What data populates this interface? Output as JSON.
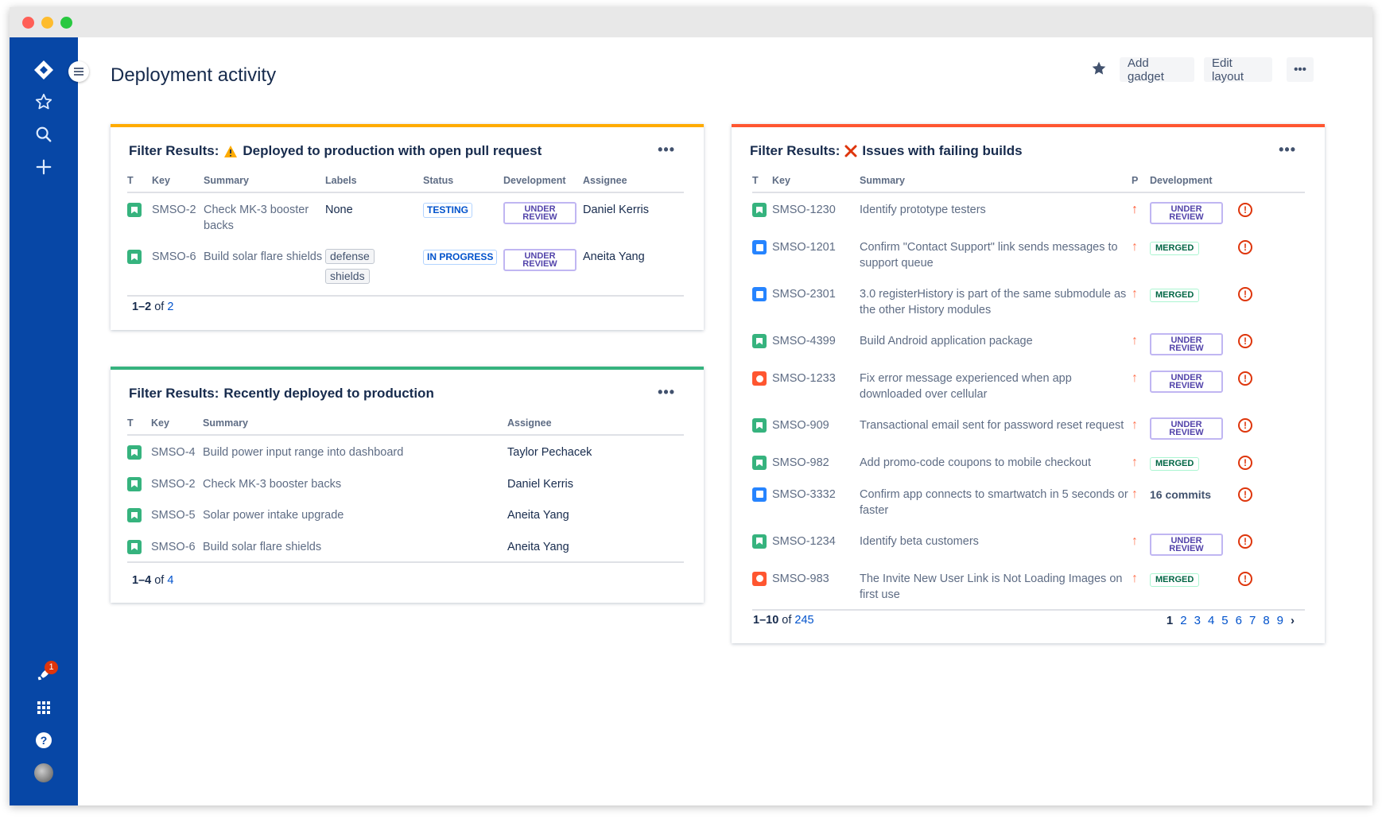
{
  "window": {
    "colors": {
      "close": "#ff5f57",
      "minimize": "#febc2e",
      "zoom": "#28c840"
    }
  },
  "sidebar": {
    "color": "#0747a6",
    "items": [
      "jira-logo",
      "star",
      "search",
      "create",
      "releases",
      "apps",
      "help",
      "profile"
    ],
    "notification_count": "1"
  },
  "header": {
    "title": "Deployment activity",
    "add_gadget": "Add gadget",
    "edit_layout": "Edit layout",
    "more": "•••"
  },
  "gadget1": {
    "accent": "#ffab00",
    "prefix": "Filter Results:",
    "title": "Deployed to production with open pull request",
    "icon": "warning",
    "columns": [
      "T",
      "Key",
      "Summary",
      "Labels",
      "Status",
      "Development",
      "Assignee"
    ],
    "rows": [
      {
        "type": "story",
        "key": "SMSO-2",
        "summary": "Check MK-3 booster backs",
        "labels": [
          "None"
        ],
        "status": "TESTING",
        "dev": "UNDER REVIEW",
        "assignee": "Daniel Kerris"
      },
      {
        "type": "story",
        "key": "SMSO-6",
        "summary": "Build solar flare shields",
        "labels": [
          "defense",
          "shields"
        ],
        "status": "IN PROGRESS",
        "dev": "UNDER REVIEW",
        "assignee": "Aneita Yang"
      }
    ],
    "footer": {
      "range": "1–2",
      "of": "of",
      "total": "2"
    }
  },
  "gadget2": {
    "accent": "#36b37e",
    "prefix": "Filter Results:",
    "title": "Recently deployed to production",
    "columns": [
      "T",
      "Key",
      "Summary",
      "Assignee"
    ],
    "rows": [
      {
        "type": "story",
        "key": "SMSO-4",
        "summary": "Build power input range into dashboard",
        "assignee": "Taylor Pechacek"
      },
      {
        "type": "story",
        "key": "SMSO-2",
        "summary": "Check MK-3 booster backs",
        "assignee": "Daniel Kerris"
      },
      {
        "type": "story",
        "key": "SMSO-5",
        "summary": "Solar power intake upgrade",
        "assignee": "Aneita Yang"
      },
      {
        "type": "story",
        "key": "SMSO-6",
        "summary": "Build solar flare shields",
        "assignee": "Aneita Yang"
      }
    ],
    "footer": {
      "range": "1–4",
      "of": "of",
      "total": "4"
    }
  },
  "gadget3": {
    "accent": "#ff5630",
    "prefix": "Filter Results:",
    "title": "Issues with failing builds",
    "icon": "cross",
    "columns": [
      "T",
      "Key",
      "Summary",
      "P",
      "Development"
    ],
    "rows": [
      {
        "type": "story",
        "key": "SMSO-1230",
        "summary": "Identify prototype testers",
        "priority": "highest",
        "dev": "UNDER REVIEW"
      },
      {
        "type": "task",
        "key": "SMSO-1201",
        "summary": "Confirm \"Contact Support\" link sends messages to support queue",
        "priority": "high",
        "dev": "MERGED"
      },
      {
        "type": "task",
        "key": "SMSO-2301",
        "summary": "3.0 registerHistory is part of the same submodule as the other History modules",
        "priority": "high",
        "dev": "MERGED"
      },
      {
        "type": "story",
        "key": "SMSO-4399",
        "summary": "Build Android application package",
        "priority": "high",
        "dev": "UNDER REVIEW"
      },
      {
        "type": "bug",
        "key": "SMSO-1233",
        "summary": "Fix error message experienced when app downloaded over cellular",
        "priority": "high",
        "dev": "UNDER REVIEW"
      },
      {
        "type": "story",
        "key": "SMSO-909",
        "summary": "Transactional email sent for password reset request",
        "priority": "high",
        "dev": "UNDER REVIEW"
      },
      {
        "type": "story",
        "key": "SMSO-982",
        "summary": "Add promo-code coupons to mobile checkout",
        "priority": "high",
        "dev": "MERGED"
      },
      {
        "type": "task",
        "key": "SMSO-3332",
        "summary": "Confirm app connects to smartwatch in 5 seconds or faster",
        "priority": "high",
        "dev": "16 commits"
      },
      {
        "type": "story",
        "key": "SMSO-1234",
        "summary": "Identify beta customers",
        "priority": "high",
        "dev": "UNDER REVIEW"
      },
      {
        "type": "bug",
        "key": "SMSO-983",
        "summary": "The Invite New User Link is Not Loading Images on first use",
        "priority": "high",
        "dev": "MERGED"
      }
    ],
    "footer": {
      "range": "1–10",
      "of": "of",
      "total": "245"
    },
    "pages": [
      "1",
      "2",
      "3",
      "4",
      "5",
      "6",
      "7",
      "8",
      "9"
    ],
    "current_page": "1"
  }
}
